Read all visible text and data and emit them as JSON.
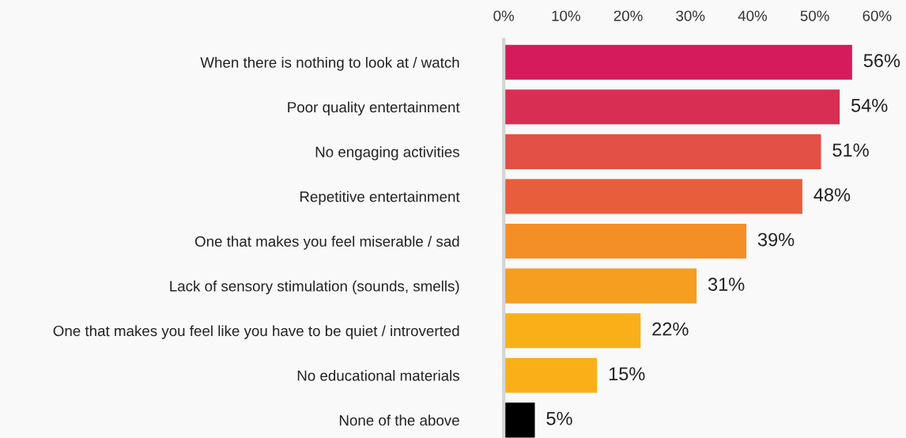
{
  "chart_data": {
    "type": "bar",
    "orientation": "horizontal",
    "categories": [
      "When there is nothing to look at / watch",
      "Poor quality entertainment",
      "No engaging activities",
      "Repetitive entertainment",
      "One that makes you feel miserable / sad",
      "Lack of sensory stimulation (sounds, smells)",
      "One that makes you feel like you have to be quiet / introverted",
      "No educational materials",
      "None of the above"
    ],
    "values": [
      56,
      54,
      51,
      48,
      39,
      31,
      22,
      15,
      5
    ],
    "colors": [
      "#d51b5b",
      "#d82e53",
      "#e35045",
      "#e85d3b",
      "#f48f28",
      "#f59e20",
      "#f9b018",
      "#f9b018",
      "#000000"
    ],
    "value_labels": [
      "56%",
      "54%",
      "51%",
      "48%",
      "39%",
      "31%",
      "22%",
      "15%",
      "5%"
    ],
    "xlim": [
      0,
      60
    ],
    "xticks": [
      {
        "value": 0,
        "label": "0%"
      },
      {
        "value": 10,
        "label": "10%"
      },
      {
        "value": 20,
        "label": "20%"
      },
      {
        "value": 30,
        "label": "30%"
      },
      {
        "value": 40,
        "label": "40%"
      },
      {
        "value": 50,
        "label": "50%"
      },
      {
        "value": 60,
        "label": "60%"
      }
    ],
    "grid": false,
    "legend": false
  }
}
